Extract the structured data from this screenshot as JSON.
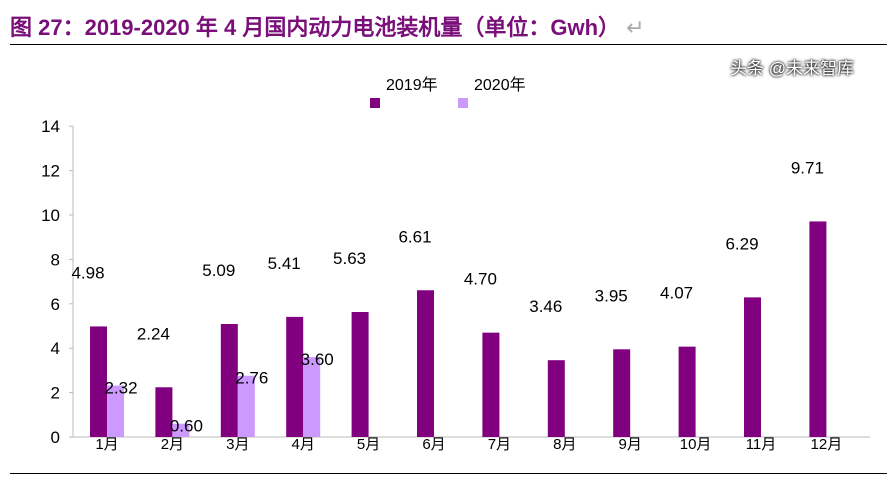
{
  "title": "图 27：2019-2020 年 4 月国内动力电池装机量（单位：Gwh）",
  "watermark": "头条 @未来智库",
  "chart_data": {
    "type": "bar",
    "title": "图 27：2019-2020 年 4 月国内动力电池装机量（单位：Gwh）",
    "categories": [
      "1月",
      "2月",
      "3月",
      "4月",
      "5月",
      "6月",
      "7月",
      "8月",
      "9月",
      "10月",
      "11月",
      "12月"
    ],
    "series": [
      {
        "name": "2019年",
        "color": "#800080",
        "values": [
          4.98,
          2.24,
          5.09,
          5.41,
          5.63,
          6.61,
          4.7,
          3.46,
          3.95,
          4.07,
          6.29,
          9.71
        ]
      },
      {
        "name": "2020年",
        "color": "#cc99ff",
        "values": [
          2.32,
          0.6,
          2.76,
          3.6,
          null,
          null,
          null,
          null,
          null,
          null,
          null,
          null
        ]
      }
    ],
    "ylim": [
      0,
      14
    ],
    "yticks": [
      0,
      2,
      4,
      6,
      8,
      10,
      12,
      14
    ],
    "grid": false,
    "legend": "top-center"
  }
}
